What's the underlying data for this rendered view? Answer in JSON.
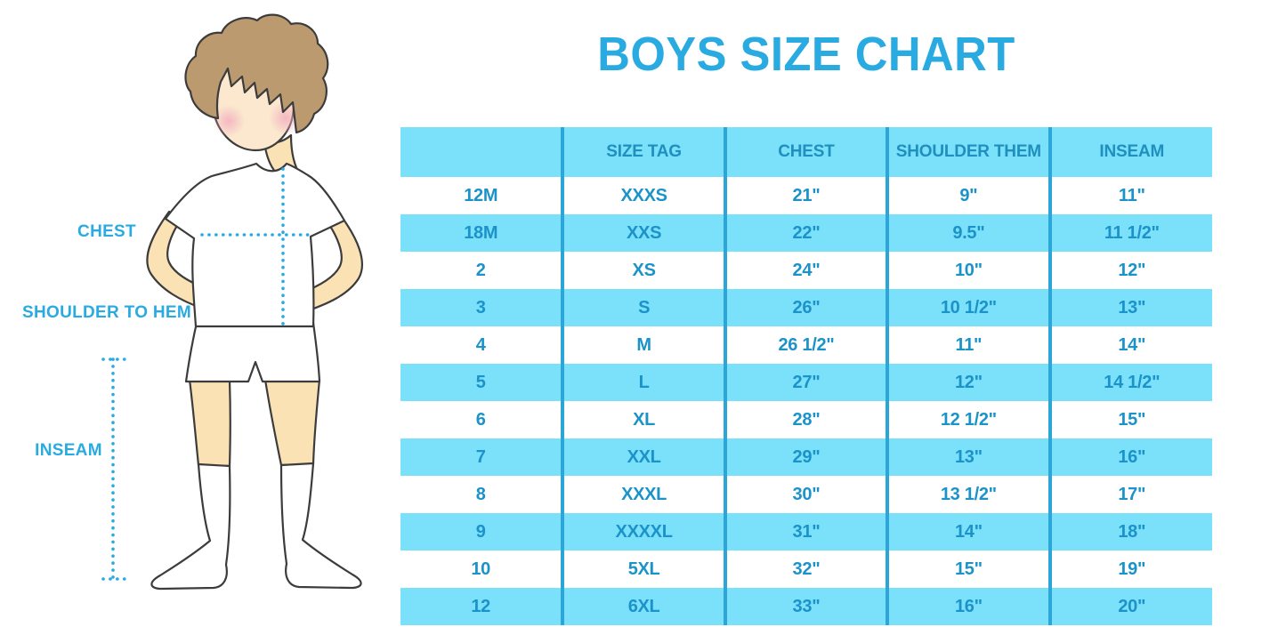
{
  "title": "BOYS SIZE CHART",
  "diagram": {
    "labels": {
      "chest": "CHEST",
      "shoulder_to_hem": "SHOULDER TO HEM",
      "inseam": "INSEAM"
    }
  },
  "colors": {
    "accent_blue": "#29ABE2",
    "header_text": "#1F8FBE",
    "table_text": "#1B93C9",
    "row_fill": "#7BE0FA",
    "divider": "#2CA6D8",
    "skin": "#FAE2B5",
    "face": "#FBE8CE",
    "hair": "#BC9A6F",
    "blush": "#F3AEC0",
    "outline": "#3C3C3C"
  },
  "chart_data": {
    "type": "table",
    "title": "BOYS SIZE CHART",
    "columns": [
      "",
      "SIZE TAG",
      "CHEST",
      "SHOULDER THEM",
      "INSEAM"
    ],
    "rows": [
      [
        "12M",
        "XXXS",
        "21\"",
        "9\"",
        "11\""
      ],
      [
        "18M",
        "XXS",
        "22\"",
        "9.5\"",
        "11 1/2\""
      ],
      [
        "2",
        "XS",
        "24\"",
        "10\"",
        "12\""
      ],
      [
        "3",
        "S",
        "26\"",
        "10 1/2\"",
        "13\""
      ],
      [
        "4",
        "M",
        "26 1/2\"",
        "11\"",
        "14\""
      ],
      [
        "5",
        "L",
        "27\"",
        "12\"",
        "14 1/2\""
      ],
      [
        "6",
        "XL",
        "28\"",
        "12 1/2\"",
        "15\""
      ],
      [
        "7",
        "XXL",
        "29\"",
        "13\"",
        "16\""
      ],
      [
        "8",
        "XXXL",
        "30\"",
        "13 1/2\"",
        "17\""
      ],
      [
        "9",
        "XXXXL",
        "31\"",
        "14\"",
        "18\""
      ],
      [
        "10",
        "5XL",
        "32\"",
        "15\"",
        "19\""
      ],
      [
        "12",
        "6XL",
        "33\"",
        "16\"",
        "20\""
      ]
    ]
  }
}
